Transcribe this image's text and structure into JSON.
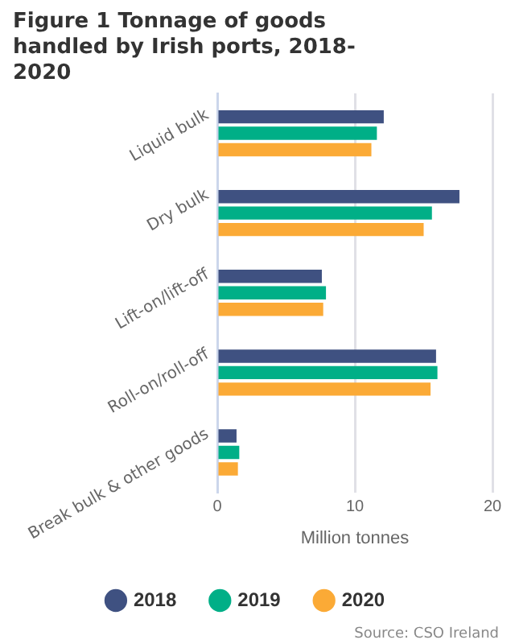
{
  "chart_data": {
    "type": "bar",
    "orientation": "horizontal",
    "title": "Figure 1 Tonnage of goods handled by Irish ports, 2018-2020",
    "categories": [
      "Liquid bulk",
      "Dry bulk",
      "Lift-on/lift-off",
      "Roll-on/roll-off",
      "Break bulk & other goods"
    ],
    "series": [
      {
        "name": "2018",
        "color": "#3f5181",
        "values": [
          12.1,
          17.6,
          7.6,
          15.9,
          1.4
        ]
      },
      {
        "name": "2019",
        "color": "#00af87",
        "values": [
          11.6,
          15.6,
          7.9,
          16.0,
          1.6
        ]
      },
      {
        "name": "2020",
        "color": "#fbaa36",
        "values": [
          11.2,
          15.0,
          7.7,
          15.5,
          1.5
        ]
      }
    ],
    "xlim": [
      0,
      20
    ],
    "xticks": [
      0,
      10,
      20
    ],
    "xlabel": "Million tonnes",
    "grid": "x",
    "legend": "bottom",
    "annotations": [
      "Source: CSO Ireland"
    ]
  }
}
